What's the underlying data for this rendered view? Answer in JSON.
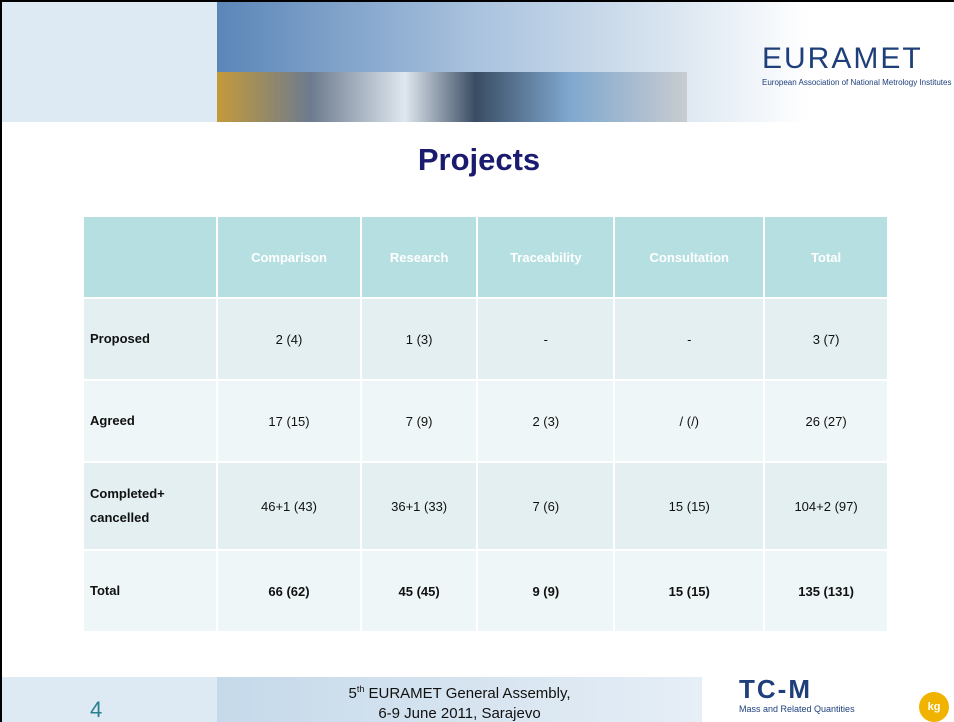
{
  "header": {
    "logo": "EURAMET",
    "logo_subtitle": "European Association of National Metrology Institutes"
  },
  "title": "Projects",
  "table": {
    "columns": [
      "",
      "Comparison",
      "Research",
      "Traceability",
      "Consultation",
      "Total"
    ],
    "rows": [
      [
        "Proposed",
        "2 (4)",
        "1 (3)",
        "-",
        "-",
        "3 (7)"
      ],
      [
        "Agreed",
        "17 (15)",
        "7 (9)",
        "2 (3)",
        "/ (/)",
        "26 (27)"
      ],
      [
        "Completed+ cancelled",
        "46+1 (43)",
        "36+1 (33)",
        "7 (6)",
        "15 (15)",
        "104+2 (97)"
      ],
      [
        "Total",
        "66 (62)",
        "45 (45)",
        "9 (9)",
        "15 (15)",
        "135 (131)"
      ]
    ]
  },
  "footer": {
    "page": "4",
    "event_number": "5",
    "event_suffix": "th",
    "event_name": " EURAMET General Assembly,",
    "event_date": "6-9 June 2011, Sarajevo",
    "tc_logo": "TC-M",
    "tc_name": "Mass and Related Quantities",
    "tc_badge": "kg"
  }
}
